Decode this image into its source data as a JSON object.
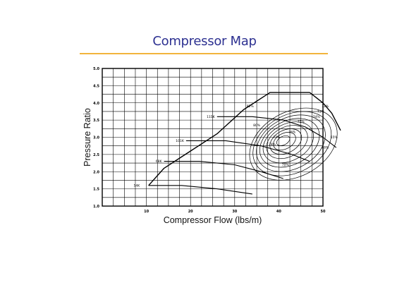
{
  "slide": {
    "title": "Compressor Map"
  },
  "colors": {
    "title": "#2d3191",
    "rule": "#f2b43c",
    "ink": "#000000"
  },
  "chart_data": {
    "type": "line",
    "title": "",
    "xlabel": "Compressor Flow (lbs/m)",
    "ylabel": "Pressure Ratio",
    "xlim": [
      0,
      50
    ],
    "ylim": [
      1.0,
      5.0
    ],
    "grid": true,
    "x_ticks": [
      "10",
      "20",
      "30",
      "40",
      "50"
    ],
    "x_tick_values": [
      10,
      20,
      30,
      40,
      50
    ],
    "y_ticks": [
      "1.0",
      "1.5",
      "2.0",
      "2.5",
      "3.0",
      "3.5",
      "4.0",
      "4.5",
      "5.0"
    ],
    "y_tick_values": [
      1.0,
      1.5,
      2.0,
      2.5,
      3.0,
      3.5,
      4.0,
      4.5,
      5.0
    ],
    "surge_line": [
      [
        10.5,
        1.6
      ],
      [
        14,
        2.1
      ],
      [
        20,
        2.6
      ],
      [
        26,
        3.1
      ],
      [
        32,
        3.8
      ],
      [
        38,
        4.3
      ],
      [
        47,
        4.3
      ]
    ],
    "choke_line": [
      [
        47,
        4.3
      ],
      [
        50,
        4.0
      ],
      [
        52,
        3.7
      ],
      [
        54,
        3.2
      ]
    ],
    "speed_lines": [
      {
        "label": "54K",
        "label_x": 8.5,
        "label_y": 1.6,
        "points": [
          [
            10.5,
            1.6
          ],
          [
            18,
            1.6
          ],
          [
            26,
            1.5
          ],
          [
            34,
            1.35
          ]
        ]
      },
      {
        "label": "68K",
        "label_x": 13.5,
        "label_y": 2.3,
        "points": [
          [
            14,
            2.3
          ],
          [
            22,
            2.3
          ],
          [
            30,
            2.2
          ],
          [
            36,
            2.0
          ],
          [
            41,
            1.8
          ]
        ]
      },
      {
        "label": "101K",
        "label_x": 18.5,
        "label_y": 2.9,
        "points": [
          [
            19,
            2.9
          ],
          [
            28,
            2.9
          ],
          [
            36,
            2.75
          ],
          [
            43,
            2.5
          ],
          [
            47,
            2.3
          ]
        ]
      },
      {
        "label": "115K",
        "label_x": 25.5,
        "label_y": 3.6,
        "points": [
          [
            26,
            3.6
          ],
          [
            34,
            3.6
          ],
          [
            41,
            3.5
          ],
          [
            46,
            3.3
          ],
          [
            50,
            3.0
          ],
          [
            53,
            2.7
          ]
        ]
      }
    ],
    "efficiency_islands": [
      {
        "label": "65%",
        "label_x": 52.5,
        "label_y": 3.0
      },
      {
        "label": "68%",
        "label_x": 50.5,
        "label_y": 2.7
      },
      {
        "label": "70%",
        "label_x": 41.5,
        "label_y": 2.2
      },
      {
        "label": "72%",
        "label_x": 50.5,
        "label_y": 3.9
      },
      {
        "label": "73%",
        "label_x": 49.5,
        "label_y": 3.75
      },
      {
        "label": "74%",
        "label_x": 48.5,
        "label_y": 3.6
      },
      {
        "label": "75%",
        "label_x": 45,
        "label_y": 3.45
      },
      {
        "label": "76%",
        "label_x": 43,
        "label_y": 3.15
      },
      {
        "label": "77%",
        "label_x": 39.5,
        "label_y": 3.0
      },
      {
        "label": "78%",
        "label_x": 38.5,
        "label_y": 2.8
      },
      {
        "label": "80%",
        "label_x": 35,
        "label_y": 3.35
      },
      {
        "label": "82%",
        "label_x": 33.5,
        "label_y": 3.9
      }
    ]
  }
}
